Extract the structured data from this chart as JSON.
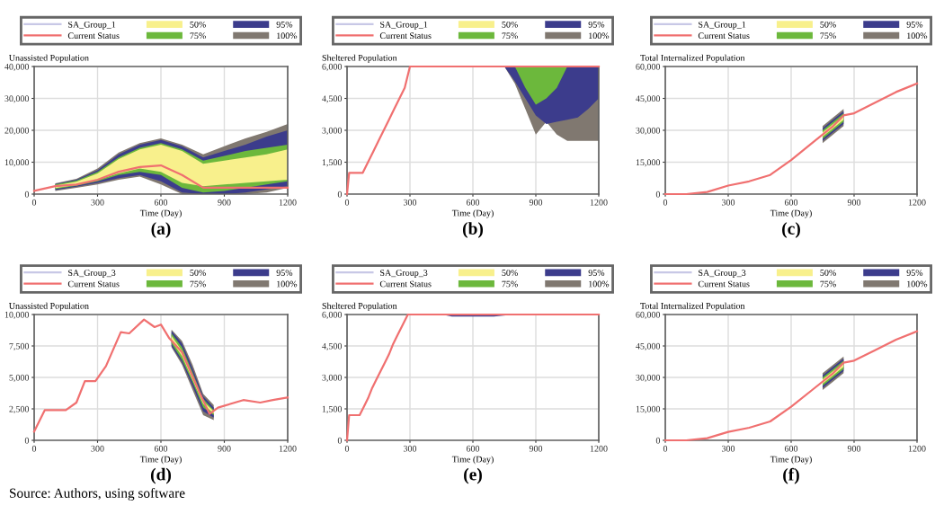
{
  "chart_data": [
    {
      "type": "line",
      "title": "(a)",
      "ylabel": "Unassisted Population",
      "xlabel": "Time (Day)",
      "legend": "top",
      "grid": true,
      "xlim": [
        0,
        1200
      ],
      "xticks": [
        0,
        300,
        600,
        900,
        1200
      ],
      "ylim": [
        0,
        40000
      ],
      "yticks": [
        0,
        {
          "value": 10000,
          "label": "10,000"
        },
        {
          "value": 20000,
          "label": "20,000"
        },
        {
          "value": 30000,
          "label": "30,000"
        },
        {
          "value": 40000,
          "label": "40,000"
        }
      ],
      "x": [
        0,
        100,
        200,
        300,
        400,
        500,
        600,
        700,
        800,
        900,
        1000,
        1100,
        1200
      ],
      "series": [
        {
          "name": "SA_Group_1",
          "color": "#c8c8e6",
          "values": [
            null,
            null,
            null,
            null,
            null,
            null,
            null,
            null,
            null,
            null,
            null,
            null,
            null
          ]
        },
        {
          "name": "Current Status",
          "color": "#f07070",
          "values": [
            1000,
            2500,
            3000,
            4500,
            7000,
            8500,
            9000,
            6000,
            2000,
            2000,
            2000,
            2000,
            2000
          ]
        },
        {
          "name": "100%",
          "color": "#807870",
          "x": [
            100,
            200,
            300,
            400,
            500,
            600,
            700,
            800,
            900,
            1000,
            1100,
            1200
          ],
          "values": [
            null,
            null,
            null,
            null,
            null,
            null,
            null,
            null,
            null,
            null,
            null,
            null
          ],
          "lower": [
            1000,
            2000,
            3000,
            4500,
            5500,
            3000,
            0,
            0,
            0,
            0,
            500,
            2000
          ],
          "upper": [
            3400,
            4800,
            8000,
            13000,
            16000,
            17500,
            15500,
            12500,
            15000,
            17500,
            19500,
            22000
          ]
        },
        {
          "name": "95%",
          "color": "#3c3c8c",
          "x": [
            100,
            200,
            300,
            400,
            500,
            600,
            700,
            800,
            900,
            1000,
            1100,
            1200
          ],
          "values": [
            null,
            null,
            null,
            null,
            null,
            null,
            null,
            null,
            null,
            null,
            null,
            null
          ],
          "lower": [
            1300,
            2300,
            3500,
            5000,
            6000,
            4000,
            500,
            0,
            0,
            500,
            1500,
            2500
          ],
          "upper": [
            3200,
            4500,
            7500,
            12500,
            15500,
            17000,
            15000,
            11500,
            13500,
            15500,
            18000,
            20000
          ]
        },
        {
          "name": "75%",
          "color": "#6cb83c",
          "x": [
            100,
            200,
            300,
            400,
            500,
            600,
            700,
            800,
            900,
            1000,
            1100,
            1200
          ],
          "values": [
            null,
            null,
            null,
            null,
            null,
            null,
            null,
            null,
            null,
            null,
            null,
            null
          ],
          "lower": [
            1600,
            2600,
            4000,
            6000,
            7000,
            6000,
            2000,
            500,
            1000,
            2000,
            3000,
            4000
          ],
          "upper": [
            3000,
            4200,
            7000,
            11500,
            14500,
            16000,
            14000,
            10500,
            12000,
            13500,
            14500,
            15500
          ]
        },
        {
          "name": "50%",
          "color": "#f8f08c",
          "x": [
            100,
            200,
            300,
            400,
            500,
            600,
            700,
            800,
            900,
            1000,
            1100,
            1200
          ],
          "values": [
            null,
            null,
            null,
            null,
            null,
            null,
            null,
            null,
            null,
            null,
            null,
            null
          ],
          "lower": [
            1900,
            2900,
            4500,
            6500,
            8000,
            7000,
            3500,
            2500,
            3000,
            3500,
            4000,
            4500
          ],
          "upper": [
            2700,
            3900,
            6500,
            11000,
            14000,
            15500,
            13500,
            9500,
            10500,
            11500,
            12500,
            14000
          ]
        }
      ]
    },
    {
      "type": "line",
      "title": "(b)",
      "ylabel": "Sheltered Population",
      "xlabel": "Time (Day)",
      "legend": "top",
      "grid": true,
      "xlim": [
        0,
        1200
      ],
      "xticks": [
        0,
        300,
        600,
        900,
        1200
      ],
      "ylim": [
        0,
        6000
      ],
      "yticks": [
        0,
        {
          "value": 1500,
          "label": "1,500"
        },
        {
          "value": 3000,
          "label": "3,000"
        },
        {
          "value": 4500,
          "label": "4,500"
        },
        {
          "value": 6000,
          "label": "6,000"
        }
      ],
      "x": [
        0,
        10,
        75,
        100,
        125,
        150,
        175,
        200,
        225,
        250,
        275,
        300,
        600,
        900,
        1200
      ],
      "series": [
        {
          "name": "SA_Group_1",
          "color": "#c8c8e6",
          "values": [
            null,
            null,
            null,
            null,
            null,
            null,
            null,
            null,
            null,
            null,
            null,
            null,
            null,
            null,
            null
          ]
        },
        {
          "name": "Current Status",
          "color": "#f07070",
          "values": [
            0,
            1000,
            1000,
            1500,
            2000,
            2500,
            3000,
            3500,
            4000,
            4500,
            5000,
            6000,
            6000,
            6000,
            6000
          ]
        },
        {
          "name": "100%",
          "color": "#807870",
          "x": [
            700,
            750,
            800,
            850,
            900,
            950,
            1000,
            1050,
            1100,
            1150,
            1200
          ],
          "values": [
            null,
            null,
            null,
            null,
            null,
            null,
            null,
            null,
            null,
            null,
            null
          ],
          "lower": [
            6000,
            6000,
            5200,
            4000,
            2800,
            3400,
            2800,
            2500,
            2500,
            2500,
            2500
          ],
          "upper": [
            6000,
            6000,
            6000,
            6000,
            6000,
            6000,
            6000,
            6000,
            6000,
            6000,
            6000
          ]
        },
        {
          "name": "95%",
          "color": "#3c3c8c",
          "x": [
            700,
            750,
            800,
            850,
            900,
            950,
            1000,
            1050,
            1100,
            1150,
            1200
          ],
          "values": [
            null,
            null,
            null,
            null,
            null,
            null,
            null,
            null,
            null,
            null,
            null
          ],
          "lower": [
            6000,
            6000,
            5300,
            4500,
            3700,
            3300,
            3400,
            3500,
            3600,
            4000,
            4500
          ],
          "upper": [
            6000,
            6000,
            6000,
            6000,
            6000,
            6000,
            6000,
            6000,
            6000,
            6000,
            6000
          ]
        },
        {
          "name": "75%",
          "color": "#6cb83c",
          "x": [
            700,
            750,
            800,
            850,
            900,
            950,
            1000,
            1050,
            1100,
            1150,
            1200
          ],
          "values": [
            null,
            null,
            null,
            null,
            null,
            null,
            null,
            null,
            null,
            null,
            null
          ],
          "lower": [
            6000,
            6000,
            6000,
            5000,
            4200,
            4500,
            5000,
            6000,
            6000,
            6000,
            6000
          ],
          "upper": [
            6000,
            6000,
            6000,
            6000,
            6000,
            6000,
            6000,
            6000,
            6000,
            6000,
            6000
          ]
        },
        {
          "name": "50%",
          "color": "#f8f08c",
          "values": [
            null,
            null,
            null,
            null,
            null,
            null,
            null,
            null,
            null,
            null,
            null,
            null,
            null,
            null,
            null
          ],
          "lower": [
            null,
            null,
            null,
            null,
            null,
            null,
            null,
            null,
            null,
            null,
            null,
            null,
            null,
            null,
            null
          ],
          "upper": [
            null,
            null,
            null,
            null,
            null,
            null,
            null,
            null,
            null,
            null,
            null,
            null,
            null,
            null,
            null
          ]
        }
      ]
    },
    {
      "type": "line",
      "title": "(c)",
      "ylabel": "Total Internalized Population",
      "xlabel": "Time (Day)",
      "legend": "top",
      "grid": true,
      "xlim": [
        0,
        1200
      ],
      "xticks": [
        0,
        300,
        600,
        900,
        1200
      ],
      "ylim": [
        0,
        60000
      ],
      "yticks": [
        0,
        {
          "value": 15000,
          "label": "15,000"
        },
        {
          "value": 30000,
          "label": "30,000"
        },
        {
          "value": 45000,
          "label": "45,000"
        },
        {
          "value": 60000,
          "label": "60,000"
        }
      ],
      "x": [
        0,
        100,
        200,
        300,
        400,
        500,
        600,
        700,
        800,
        850,
        900,
        1000,
        1100,
        1200
      ],
      "series": [
        {
          "name": "SA_Group_1",
          "color": "#c8c8e6",
          "values": [
            null,
            null,
            null,
            null,
            null,
            null,
            null,
            null,
            null,
            null,
            null,
            null,
            null,
            null
          ]
        },
        {
          "name": "Current Status",
          "color": "#f07070",
          "values": [
            0,
            0,
            1000,
            4000,
            6000,
            9000,
            16000,
            24000,
            32000,
            37000,
            38000,
            43000,
            48000,
            52000
          ]
        },
        {
          "name": "100%",
          "color": "#807870",
          "x": [
            750,
            800,
            850
          ],
          "values": [
            null,
            null,
            null
          ],
          "lower": [
            24000,
            28000,
            32000
          ],
          "upper": [
            32000,
            36000,
            40000
          ]
        },
        {
          "name": "95%",
          "color": "#3c3c8c",
          "x": [
            750,
            800,
            850
          ],
          "values": [
            null,
            null,
            null
          ],
          "lower": [
            25000,
            29000,
            33000
          ],
          "upper": [
            31000,
            35000,
            39000
          ]
        },
        {
          "name": "75%",
          "color": "#6cb83c",
          "x": [
            750,
            800,
            850
          ],
          "values": [
            null,
            null,
            null
          ],
          "lower": [
            26000,
            30000,
            34000
          ],
          "upper": [
            30000,
            34000,
            38000
          ]
        },
        {
          "name": "50%",
          "color": "#f8f08c",
          "x": [
            750,
            800,
            850
          ],
          "values": [
            null,
            null,
            null
          ],
          "lower": [
            27000,
            31000,
            35000
          ],
          "upper": [
            29000,
            33000,
            37000
          ]
        }
      ]
    },
    {
      "type": "line",
      "title": "(d)",
      "ylabel": "Unassisted Population",
      "xlabel": "Time (Day)",
      "legend": "top",
      "grid": true,
      "xlim": [
        0,
        1200
      ],
      "xticks": [
        0,
        300,
        600,
        900,
        1200
      ],
      "ylim": [
        0,
        10000
      ],
      "yticks": [
        0,
        {
          "value": 2500,
          "label": "2,500"
        },
        {
          "value": 5000,
          "label": "5,000"
        },
        {
          "value": 7500,
          "label": "7,500"
        },
        {
          "value": 10000,
          "label": "10,000"
        }
      ],
      "annotations": [
        "Source: Authors, using software"
      ],
      "x": [
        0,
        50,
        150,
        200,
        240,
        290,
        340,
        410,
        450,
        520,
        570,
        600,
        640,
        700,
        780,
        830,
        870,
        990,
        1070,
        1130,
        1200
      ],
      "series": [
        {
          "name": "SA_Group_3",
          "color": "#c8c8e6",
          "values": [
            null,
            null,
            null,
            null,
            null,
            null,
            null,
            null,
            null,
            null,
            null,
            null,
            null,
            null,
            null,
            null,
            null,
            null,
            null,
            null,
            null
          ]
        },
        {
          "name": "Current Status",
          "color": "#f07070",
          "values": [
            700,
            2400,
            2400,
            3000,
            4700,
            4700,
            5900,
            8600,
            8500,
            9600,
            9000,
            9200,
            8100,
            7000,
            3900,
            2100,
            2600,
            3200,
            3000,
            3200,
            3400
          ]
        },
        {
          "name": "100%",
          "color": "#807870",
          "x": [
            650,
            700,
            750,
            800,
            850
          ],
          "values": [
            null,
            null,
            null,
            null,
            null
          ],
          "lower": [
            7400,
            6000,
            4000,
            2000,
            1600
          ],
          "upper": [
            8800,
            7900,
            6000,
            3700,
            2800
          ]
        },
        {
          "name": "95%",
          "color": "#3c3c8c",
          "x": [
            650,
            700,
            750,
            800,
            850
          ],
          "values": [
            null,
            null,
            null,
            null,
            null
          ],
          "lower": [
            7500,
            6200,
            4300,
            2300,
            1800
          ],
          "upper": [
            8700,
            7700,
            5700,
            3500,
            2600
          ]
        },
        {
          "name": "75%",
          "color": "#6cb83c",
          "x": [
            650,
            700,
            750,
            800,
            850
          ],
          "values": [
            null,
            null,
            null,
            null,
            null
          ],
          "lower": [
            7700,
            6400,
            4600,
            2600,
            2000
          ],
          "upper": [
            8500,
            7400,
            5400,
            3300,
            2400
          ]
        },
        {
          "name": "50%",
          "color": "#f8f08c",
          "x": [
            650,
            700,
            750,
            800,
            850
          ],
          "values": [
            null,
            null,
            null,
            null,
            null
          ],
          "lower": [
            7900,
            6700,
            4800,
            2900,
            2100
          ],
          "upper": [
            8300,
            7100,
            5200,
            3100,
            2300
          ]
        }
      ]
    },
    {
      "type": "line",
      "title": "(e)",
      "ylabel": "Sheltered Population",
      "xlabel": "Time (Day)",
      "legend": "top",
      "grid": true,
      "xlim": [
        0,
        1200
      ],
      "xticks": [
        0,
        300,
        600,
        900,
        1200
      ],
      "ylim": [
        0,
        6000
      ],
      "yticks": [
        0,
        {
          "value": 1500,
          "label": "1,500"
        },
        {
          "value": 3000,
          "label": "3,000"
        },
        {
          "value": 4500,
          "label": "4,500"
        },
        {
          "value": 6000,
          "label": "6,000"
        }
      ],
      "x": [
        0,
        10,
        60,
        80,
        100,
        120,
        140,
        160,
        180,
        200,
        220,
        240,
        260,
        290,
        600,
        900,
        1200
      ],
      "series": [
        {
          "name": "SA_Group_3",
          "color": "#c8c8e6",
          "values": [
            null,
            null,
            null,
            null,
            null,
            null,
            null,
            null,
            null,
            null,
            null,
            null,
            null,
            null,
            null,
            null,
            null
          ]
        },
        {
          "name": "Current Status",
          "color": "#f07070",
          "values": [
            0,
            1200,
            1200,
            1600,
            2000,
            2500,
            2900,
            3300,
            3700,
            4100,
            4600,
            5000,
            5400,
            6000,
            6000,
            6000,
            6000
          ]
        },
        {
          "name": "100%",
          "color": "#807870",
          "values": [
            null,
            null,
            null,
            null,
            null,
            null,
            null,
            null,
            null,
            null,
            null,
            null,
            null,
            null,
            null,
            null,
            null
          ],
          "lower": [
            null,
            null,
            null,
            null,
            null,
            null,
            null,
            null,
            null,
            null,
            null,
            null,
            null,
            null,
            null,
            null,
            null
          ],
          "upper": [
            null,
            null,
            null,
            null,
            null,
            null,
            null,
            null,
            null,
            null,
            null,
            null,
            null,
            null,
            null,
            null,
            null
          ]
        },
        {
          "name": "95%",
          "color": "#3c3c8c",
          "x": [
            450,
            500,
            600,
            700,
            800
          ],
          "values": [
            null,
            null,
            null,
            null,
            null
          ],
          "lower": [
            6000,
            5900,
            5900,
            5900,
            6000
          ],
          "upper": [
            6000,
            6000,
            6000,
            6000,
            6000
          ]
        },
        {
          "name": "75%",
          "color": "#6cb83c",
          "values": [
            null,
            null,
            null,
            null,
            null,
            null,
            null,
            null,
            null,
            null,
            null,
            null,
            null,
            null,
            null,
            null,
            null
          ],
          "lower": [
            null,
            null,
            null,
            null,
            null,
            null,
            null,
            null,
            null,
            null,
            null,
            null,
            null,
            null,
            null,
            null,
            null
          ],
          "upper": [
            null,
            null,
            null,
            null,
            null,
            null,
            null,
            null,
            null,
            null,
            null,
            null,
            null,
            null,
            null,
            null,
            null
          ]
        },
        {
          "name": "50%",
          "color": "#f8f08c",
          "values": [
            null,
            null,
            null,
            null,
            null,
            null,
            null,
            null,
            null,
            null,
            null,
            null,
            null,
            null,
            null,
            null,
            null
          ],
          "lower": [
            null,
            null,
            null,
            null,
            null,
            null,
            null,
            null,
            null,
            null,
            null,
            null,
            null,
            null,
            null,
            null,
            null
          ],
          "upper": [
            null,
            null,
            null,
            null,
            null,
            null,
            null,
            null,
            null,
            null,
            null,
            null,
            null,
            null,
            null,
            null,
            null
          ]
        }
      ]
    },
    {
      "type": "line",
      "title": "(f)",
      "ylabel": "Total Internalized Population",
      "xlabel": "Time (Day)",
      "legend": "top",
      "grid": true,
      "xlim": [
        0,
        1200
      ],
      "xticks": [
        0,
        300,
        600,
        900,
        1200
      ],
      "ylim": [
        0,
        60000
      ],
      "yticks": [
        0,
        {
          "value": 15000,
          "label": "15,000"
        },
        {
          "value": 30000,
          "label": "30,000"
        },
        {
          "value": 45000,
          "label": "45,000"
        },
        {
          "value": 60000,
          "label": "60,000"
        }
      ],
      "x": [
        0,
        100,
        200,
        300,
        400,
        500,
        600,
        700,
        800,
        850,
        900,
        1000,
        1100,
        1200
      ],
      "series": [
        {
          "name": "SA_Group_3",
          "color": "#c8c8e6",
          "values": [
            null,
            null,
            null,
            null,
            null,
            null,
            null,
            null,
            null,
            null,
            null,
            null,
            null,
            null
          ]
        },
        {
          "name": "Current Status",
          "color": "#f07070",
          "values": [
            0,
            0,
            1000,
            4000,
            6000,
            9000,
            16000,
            24000,
            32000,
            37000,
            38000,
            43000,
            48000,
            52000
          ]
        },
        {
          "name": "100%",
          "color": "#807870",
          "x": [
            750,
            800,
            850
          ],
          "values": [
            null,
            null,
            null
          ],
          "lower": [
            24000,
            28000,
            32000
          ],
          "upper": [
            32000,
            36000,
            40000
          ]
        },
        {
          "name": "95%",
          "color": "#3c3c8c",
          "x": [
            750,
            800,
            850
          ],
          "values": [
            null,
            null,
            null
          ],
          "lower": [
            25000,
            29000,
            33000
          ],
          "upper": [
            31000,
            35000,
            39000
          ]
        },
        {
          "name": "75%",
          "color": "#6cb83c",
          "x": [
            750,
            800,
            850
          ],
          "values": [
            null,
            null,
            null
          ],
          "lower": [
            26000,
            30000,
            34000
          ],
          "upper": [
            30000,
            34000,
            38000
          ]
        },
        {
          "name": "50%",
          "color": "#f8f08c",
          "x": [
            750,
            800,
            850
          ],
          "values": [
            null,
            null,
            null
          ],
          "lower": [
            27000,
            31000,
            35000
          ],
          "upper": [
            29000,
            33000,
            37000
          ]
        }
      ]
    }
  ]
}
